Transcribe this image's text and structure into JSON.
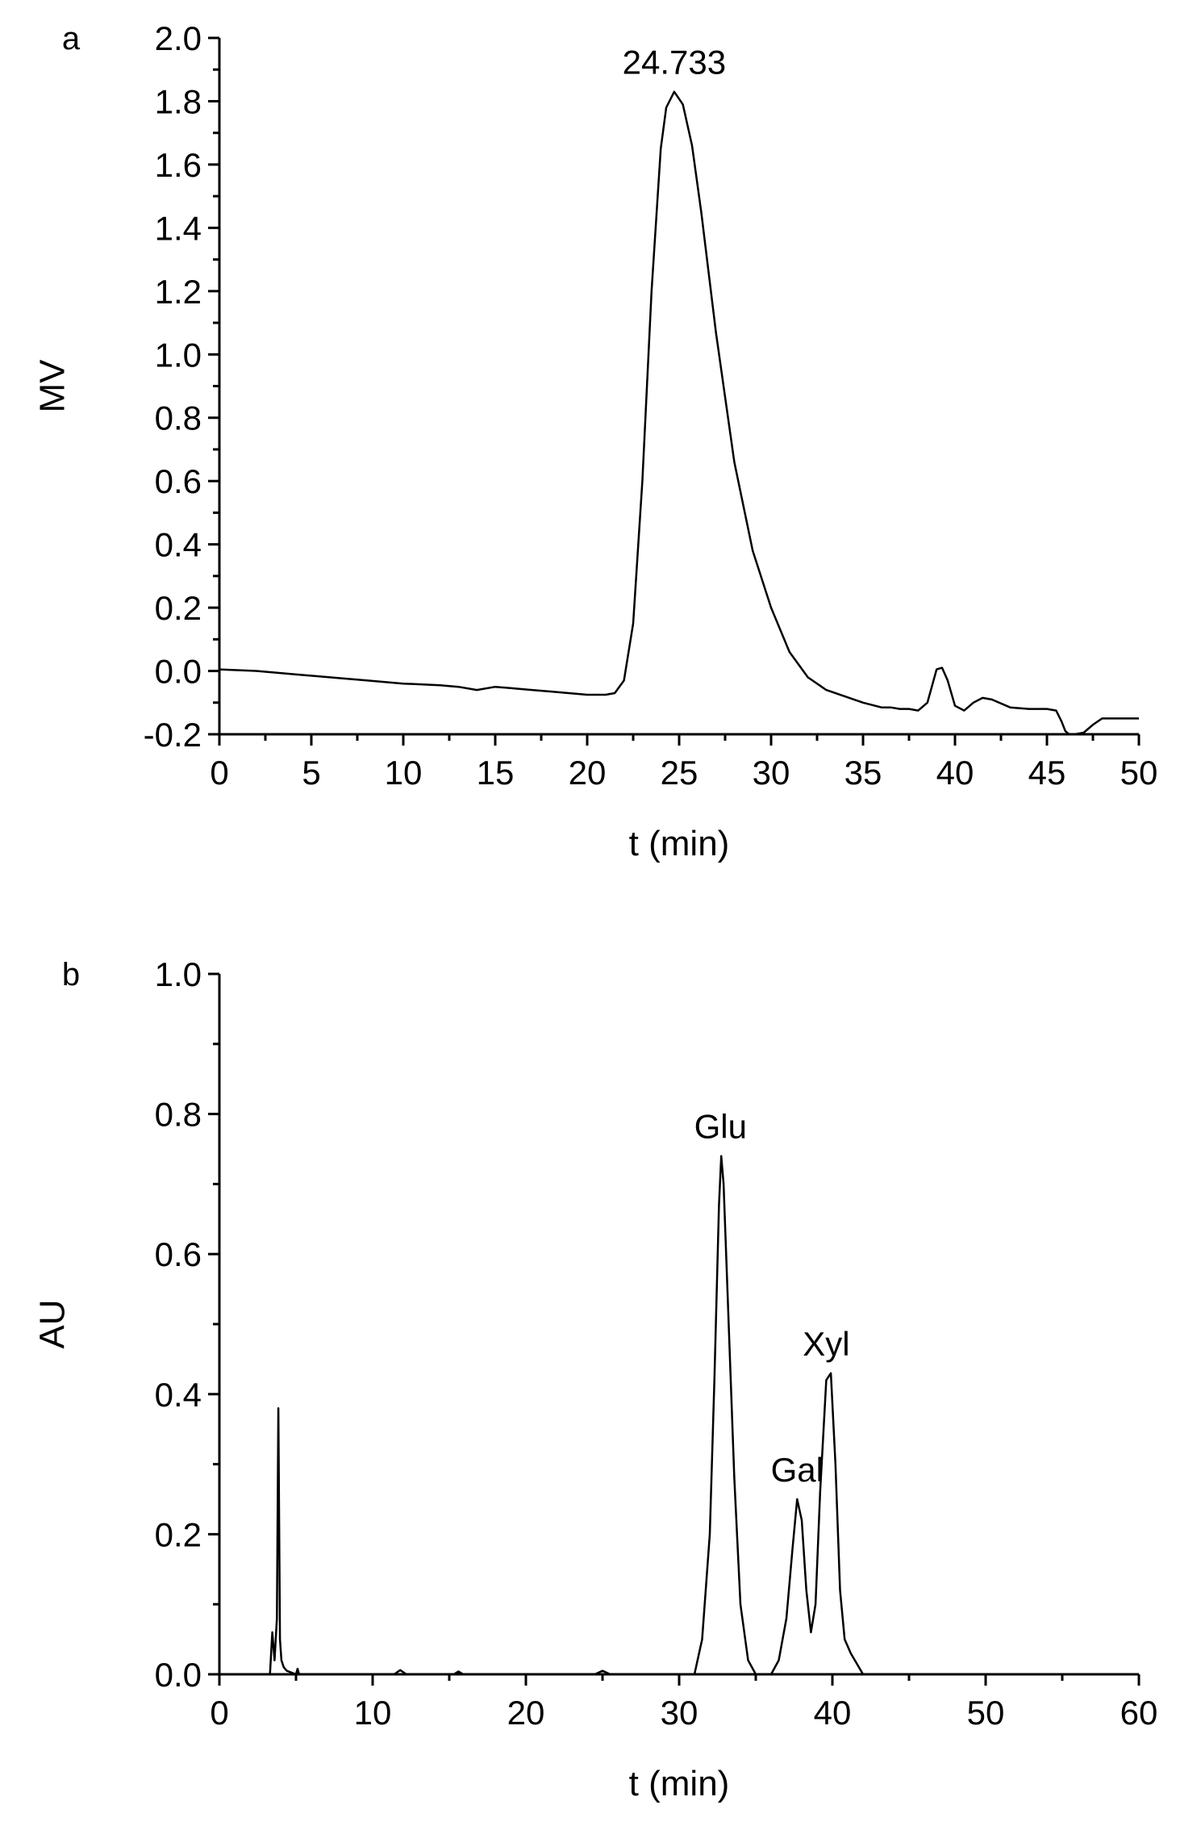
{
  "colors": {
    "line": "#000000",
    "background": "#ffffff"
  },
  "chart_data": [
    {
      "type": "line",
      "panel_label": "a",
      "xlabel": "t (min)",
      "ylabel": "MV",
      "xlim": [
        0,
        50
      ],
      "ylim": [
        -0.2,
        2.0
      ],
      "xticks": [
        "0",
        "5",
        "10",
        "15",
        "20",
        "25",
        "30",
        "35",
        "40",
        "45",
        "50"
      ],
      "yticks": [
        "-0.2",
        "0.0",
        "0.2",
        "0.4",
        "0.6",
        "0.8",
        "1.0",
        "1.2",
        "1.4",
        "1.6",
        "1.8",
        "2.0"
      ],
      "grid": false,
      "annotations": [
        {
          "text": "24.733",
          "x": 24.733,
          "y": 1.83
        }
      ],
      "series": [
        {
          "x": [
            0,
            2,
            4,
            6,
            8,
            10,
            12,
            13,
            14,
            15,
            16,
            17,
            18,
            19,
            20,
            21,
            21.5,
            22,
            22.5,
            23,
            23.5,
            24,
            24.3,
            24.733,
            25.2,
            25.7,
            26.2,
            27,
            28,
            29,
            30,
            31,
            32,
            33,
            34,
            35,
            36,
            36.5,
            37,
            37.5,
            38,
            38.5,
            39,
            39.3,
            39.6,
            40,
            40.5,
            41,
            41.5,
            42,
            43,
            44,
            45,
            45.5,
            45.8,
            46,
            46.2,
            46.5,
            47,
            47.5,
            48,
            49,
            50
          ],
          "y": [
            0.005,
            0.0,
            -0.01,
            -0.02,
            -0.03,
            -0.04,
            -0.045,
            -0.05,
            -0.06,
            -0.05,
            -0.055,
            -0.06,
            -0.065,
            -0.07,
            -0.075,
            -0.075,
            -0.07,
            -0.03,
            0.15,
            0.6,
            1.2,
            1.65,
            1.78,
            1.83,
            1.79,
            1.66,
            1.45,
            1.07,
            0.66,
            0.38,
            0.2,
            0.06,
            -0.02,
            -0.06,
            -0.08,
            -0.1,
            -0.115,
            -0.115,
            -0.12,
            -0.12,
            -0.125,
            -0.1,
            0.005,
            0.01,
            -0.03,
            -0.11,
            -0.125,
            -0.1,
            -0.085,
            -0.09,
            -0.115,
            -0.12,
            -0.12,
            -0.125,
            -0.16,
            -0.19,
            -0.2,
            -0.2,
            -0.195,
            -0.17,
            -0.15,
            -0.15,
            -0.15
          ]
        }
      ]
    },
    {
      "type": "line",
      "panel_label": "b",
      "xlabel": "t (min)",
      "ylabel": "AU",
      "xlim": [
        0,
        60
      ],
      "ylim": [
        0,
        1.0
      ],
      "xticks": [
        "0",
        "10",
        "20",
        "30",
        "40",
        "50",
        "60"
      ],
      "yticks": [
        "0.0",
        "0.2",
        "0.4",
        "0.6",
        "0.8",
        "1.0"
      ],
      "grid": false,
      "annotations": [
        {
          "text": "Glu",
          "x": 32.7,
          "y": 0.74
        },
        {
          "text": "Gal",
          "x": 37.7,
          "y": 0.25
        },
        {
          "text": "Xyl",
          "x": 39.6,
          "y": 0.43
        }
      ],
      "series": [
        {
          "x": [
            1.5,
            3.3,
            3.45,
            3.6,
            3.75,
            3.85,
            3.95,
            4.05,
            4.2,
            4.4,
            5.0,
            5.1,
            5.2,
            6,
            11.4,
            11.8,
            12.2,
            15.3,
            15.6,
            15.9,
            24.5,
            25.0,
            25.5,
            31.0,
            31.5,
            32.0,
            32.3,
            32.6,
            32.75,
            32.9,
            33.2,
            33.6,
            34.0,
            34.5,
            35.0,
            36.0,
            36.5,
            37.0,
            37.4,
            37.7,
            38.0,
            38.3,
            38.6,
            38.9,
            39.2,
            39.6,
            39.9,
            40.2,
            40.5,
            40.8,
            41.2,
            41.6,
            42.0,
            60
          ],
          "y": [
            0.0,
            0.0,
            0.06,
            0.02,
            0.08,
            0.38,
            0.05,
            0.02,
            0.01,
            0.005,
            0.0,
            0.008,
            0.0,
            0.0,
            0.0,
            0.006,
            0.0,
            0.0,
            0.004,
            0.0,
            0.0,
            0.005,
            0.0,
            0.0,
            0.05,
            0.2,
            0.42,
            0.67,
            0.74,
            0.7,
            0.52,
            0.28,
            0.1,
            0.02,
            0.0,
            0.0,
            0.02,
            0.08,
            0.18,
            0.25,
            0.22,
            0.12,
            0.06,
            0.1,
            0.26,
            0.42,
            0.43,
            0.3,
            0.12,
            0.05,
            0.03,
            0.015,
            0.0,
            0.0
          ]
        }
      ]
    }
  ]
}
